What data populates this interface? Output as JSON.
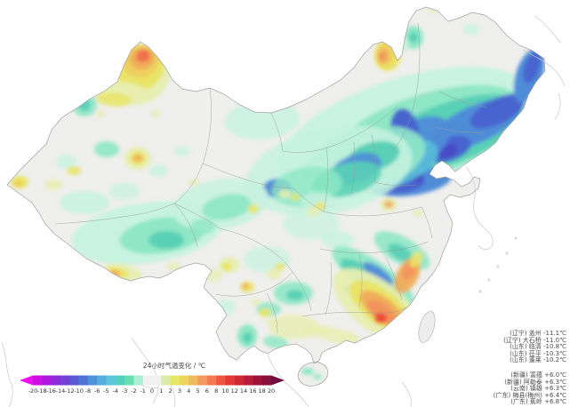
{
  "legend": {
    "title": "24小时气温变化 / ℃",
    "ticks": [
      "-20",
      "-18",
      "-16",
      "-14",
      "-12",
      "-10",
      "-8",
      "-6",
      "-5",
      "-4",
      "-3",
      "-2",
      "-1",
      "0",
      "1",
      "2",
      "3",
      "4",
      "5",
      "6",
      "8",
      "10",
      "12",
      "14",
      "16",
      "18",
      "20"
    ],
    "segment_colors": [
      "#cf0ee4",
      "#ad17df",
      "#8f2bdb",
      "#7341d6",
      "#5a58d2",
      "#4d74d4",
      "#4e93d8",
      "#55aedb",
      "#5ec6da",
      "#55cfc0",
      "#66dfb2",
      "#abeed6",
      "#f0f1f0",
      "#f0f1f0",
      "#dcebaa",
      "#e7e766",
      "#edd55e",
      "#f0ba5e",
      "#f29a5e",
      "#f27952",
      "#ef5540",
      "#e23936",
      "#cf2634",
      "#b81b37",
      "#a01339",
      "#87103a"
    ],
    "left_arrow_color": "#ee10ee",
    "right_arrow_color": "#6e0e3c"
  },
  "annotations": {
    "coldest": [
      {
        "province": "辽宁",
        "station": "盖州",
        "value": "-11.1℃"
      },
      {
        "province": "辽宁",
        "station": "大石桥",
        "value": "-11.0℃"
      },
      {
        "province": "山东",
        "station": "临清",
        "value": "-10.8℃"
      },
      {
        "province": "山东",
        "station": "茌平",
        "value": "-10.3℃"
      },
      {
        "province": "山东",
        "station": "蓬莱",
        "value": "-10.2℃"
      }
    ],
    "warmest": [
      {
        "province": "新疆",
        "station": "富蕴",
        "value": "+6.0℃"
      },
      {
        "province": "新疆",
        "station": "阿勒泰",
        "value": "+6.3℃"
      },
      {
        "province": "云南",
        "station": "镇雄",
        "value": "+6.3℃"
      },
      {
        "province": "广东",
        "station": "梅县(梅州)",
        "value": "+6.4℃"
      },
      {
        "province": "广东",
        "station": "蕉岭",
        "value": "+6.8℃"
      }
    ]
  },
  "chart_data": {
    "type": "heatmap",
    "title": "24小时气温变化 / ℃",
    "scale_range": [
      -20,
      20
    ],
    "palette": {
      "mint0": "#c6f2e0",
      "mint1": "#8fe7c6",
      "teal": "#5ad0b6",
      "tealblue": "#5cc4da",
      "blue": "#4f8cd8",
      "dblue": "#4a63cf",
      "indigo": "#474bc4",
      "yel0": "#e7eeb0",
      "yel1": "#e9e468",
      "gold": "#edcf5e",
      "org": "#f0ad5a",
      "dorg": "#f2935c",
      "rorg": "#f0714e",
      "red": "#eb4b38"
    },
    "land_color": "#efefed",
    "border_color": "#9a9a9a",
    "coast_color": "#c6c6c6",
    "anomaly_blobs": [
      [
        455,
        150,
        150,
        62,
        -18,
        "mint0",
        0.95
      ],
      [
        480,
        152,
        115,
        46,
        -18,
        "mint1",
        1
      ],
      [
        505,
        150,
        88,
        34,
        -20,
        "teal",
        1
      ],
      [
        535,
        140,
        56,
        21,
        -24,
        "blue",
        1
      ],
      [
        560,
        125,
        34,
        14,
        -26,
        "dblue",
        1
      ],
      [
        595,
        85,
        15,
        32,
        18,
        "blue",
        1
      ],
      [
        598,
        76,
        8,
        18,
        18,
        "dblue",
        1
      ],
      [
        505,
        168,
        26,
        13,
        -20,
        "dblue",
        1
      ],
      [
        503,
        170,
        12,
        7,
        -20,
        "indigo",
        1
      ],
      [
        470,
        160,
        40,
        24,
        -32,
        "blue",
        0.95
      ],
      [
        455,
        148,
        16,
        26,
        -8,
        "dblue",
        1
      ],
      [
        478,
        178,
        18,
        10,
        -30,
        "dblue",
        0.95
      ],
      [
        462,
        205,
        46,
        15,
        -8,
        "blue",
        1
      ],
      [
        452,
        208,
        26,
        9,
        -8,
        "dblue",
        1
      ],
      [
        468,
        199,
        9,
        6,
        0,
        "indigo",
        1
      ],
      [
        440,
        185,
        55,
        25,
        -18,
        "tealblue",
        0.85
      ],
      [
        410,
        180,
        70,
        35,
        -15,
        "mint1",
        0.9
      ],
      [
        370,
        192,
        95,
        48,
        -12,
        "mint0",
        0.85
      ],
      [
        420,
        176,
        30,
        16,
        -15,
        "teal",
        1
      ],
      [
        400,
        190,
        30,
        16,
        -20,
        "blue",
        0.9
      ],
      [
        390,
        202,
        40,
        18,
        -15,
        "teal",
        0.9
      ],
      [
        312,
        212,
        16,
        11,
        0,
        "blue",
        1
      ],
      [
        312,
        212,
        7,
        5,
        0,
        "dblue",
        1
      ],
      [
        295,
        135,
        42,
        22,
        -5,
        "mint0",
        0.8
      ],
      [
        465,
        42,
        11,
        13,
        0,
        "mint1",
        1
      ],
      [
        465,
        42,
        5,
        6,
        0,
        "teal",
        1
      ],
      [
        452,
        50,
        8,
        9,
        0,
        "mint0",
        0.9
      ],
      [
        530,
        33,
        9,
        6,
        0,
        "mint0",
        0.8
      ],
      [
        345,
        210,
        40,
        22,
        -10,
        "mint1",
        0.8
      ],
      [
        358,
        228,
        20,
        12,
        0,
        "mint0",
        0.8
      ],
      [
        165,
        262,
        85,
        34,
        -8,
        "mint0",
        0.95
      ],
      [
        182,
        265,
        48,
        20,
        -8,
        "mint1",
        1
      ],
      [
        187,
        270,
        20,
        10,
        0,
        "teal",
        1
      ],
      [
        248,
        230,
        55,
        28,
        -10,
        "mint0",
        0.9
      ],
      [
        255,
        233,
        28,
        14,
        -10,
        "mint1",
        0.95
      ],
      [
        228,
        255,
        14,
        9,
        0,
        "mint1",
        0.8
      ],
      [
        95,
        228,
        28,
        13,
        0,
        "mint0",
        0.85
      ],
      [
        120,
        168,
        14,
        9,
        0,
        "mint1",
        0.9
      ],
      [
        95,
        118,
        14,
        13,
        0,
        "mint1",
        0.9
      ],
      [
        95,
        118,
        7,
        7,
        0,
        "teal",
        0.95
      ],
      [
        75,
        182,
        12,
        8,
        0,
        "mint0",
        0.8
      ],
      [
        140,
        215,
        18,
        10,
        0,
        "mint0",
        0.7
      ],
      [
        178,
        192,
        10,
        7,
        0,
        "mint0",
        0.8
      ],
      [
        205,
        170,
        9,
        6,
        0,
        "mint0",
        0.7
      ],
      [
        350,
        252,
        32,
        18,
        0,
        "mint0",
        0.7
      ],
      [
        300,
        292,
        26,
        15,
        0,
        "mint0",
        0.7
      ],
      [
        380,
        270,
        18,
        10,
        0,
        "mint0",
        0.8
      ],
      [
        420,
        312,
        55,
        18,
        35,
        "mint1",
        0.95
      ],
      [
        415,
        315,
        38,
        12,
        35,
        "teal",
        1
      ],
      [
        425,
        308,
        20,
        7,
        35,
        "blue",
        0.95
      ],
      [
        398,
        330,
        14,
        6,
        35,
        "blue",
        0.9
      ],
      [
        452,
        282,
        35,
        15,
        30,
        "mint1",
        0.9
      ],
      [
        450,
        284,
        15,
        8,
        30,
        "teal",
        0.95
      ],
      [
        330,
        330,
        22,
        13,
        0,
        "mint1",
        0.9
      ],
      [
        332,
        332,
        10,
        6,
        0,
        "teal",
        0.95
      ],
      [
        302,
        348,
        14,
        8,
        0,
        "mint1",
        0.85
      ],
      [
        278,
        378,
        11,
        13,
        0,
        "mint1",
        1
      ],
      [
        278,
        380,
        5,
        6,
        0,
        "teal",
        1
      ],
      [
        255,
        345,
        10,
        8,
        0,
        "mint0",
        0.8
      ],
      [
        310,
        385,
        14,
        7,
        10,
        "mint1",
        0.85
      ],
      [
        346,
        418,
        7,
        4,
        0,
        "mint1",
        1
      ],
      [
        357,
        424,
        5,
        3,
        0,
        "mint1",
        0.9
      ],
      [
        152,
        84,
        40,
        34,
        -15,
        "yel0",
        0.95
      ],
      [
        155,
        76,
        30,
        26,
        -15,
        "yel1",
        1
      ],
      [
        158,
        69,
        21,
        18,
        -15,
        "gold",
        1
      ],
      [
        160,
        66,
        14,
        12,
        -15,
        "org",
        1
      ],
      [
        161,
        63,
        8,
        7,
        -15,
        "rorg",
        1
      ],
      [
        135,
        103,
        34,
        12,
        8,
        "yel0",
        0.9
      ],
      [
        128,
        112,
        20,
        8,
        4,
        "yel1",
        0.85
      ],
      [
        83,
        192,
        8,
        5,
        0,
        "yel1",
        0.9
      ],
      [
        60,
        208,
        10,
        6,
        0,
        "yel0",
        0.85
      ],
      [
        22,
        205,
        10,
        7,
        0,
        "yel1",
        1
      ],
      [
        20,
        207,
        5,
        4,
        0,
        "gold",
        1
      ],
      [
        155,
        178,
        15,
        13,
        0,
        "yel0",
        0.95
      ],
      [
        155,
        178,
        9,
        8,
        0,
        "yel1",
        1
      ],
      [
        155,
        178,
        5,
        4,
        0,
        "org",
        1
      ],
      [
        113,
        128,
        5,
        4,
        0,
        "yel0",
        0.8
      ],
      [
        175,
        128,
        5,
        4,
        0,
        "yel0",
        0.8
      ],
      [
        218,
        205,
        6,
        4,
        0,
        "yel0",
        0.8
      ],
      [
        436,
        62,
        15,
        18,
        8,
        "yel1",
        1
      ],
      [
        433,
        62,
        10,
        13,
        8,
        "gold",
        1
      ],
      [
        431,
        63,
        6,
        8,
        8,
        "org",
        1
      ],
      [
        430,
        64,
        3.5,
        5,
        8,
        "dorg",
        1
      ],
      [
        285,
        235,
        6,
        5,
        0,
        "yel1",
        0.9
      ],
      [
        320,
        218,
        7,
        5,
        0,
        "yel0",
        0.85
      ],
      [
        332,
        222,
        5,
        4,
        0,
        "yel1",
        0.85
      ],
      [
        360,
        232,
        6,
        5,
        0,
        "yel1",
        0.9
      ],
      [
        352,
        238,
        8,
        6,
        0,
        "yel0",
        0.8
      ],
      [
        437,
        230,
        10,
        8,
        0,
        "yel0",
        0.9
      ],
      [
        437,
        230,
        5,
        4,
        0,
        "org",
        1
      ],
      [
        470,
        240,
        6,
        4,
        0,
        "yel0",
        0.8
      ],
      [
        258,
        298,
        12,
        9,
        0,
        "yel0",
        0.9
      ],
      [
        255,
        300,
        6,
        5,
        0,
        "yel1",
        1
      ],
      [
        278,
        323,
        8,
        6,
        0,
        "yel1",
        0.95
      ],
      [
        276,
        322,
        4,
        3,
        0,
        "org",
        1
      ],
      [
        240,
        310,
        10,
        7,
        0,
        "yel0",
        0.8
      ],
      [
        308,
        308,
        9,
        6,
        0,
        "yel0",
        0.85
      ],
      [
        315,
        300,
        6,
        4,
        0,
        "yel1",
        0.85
      ],
      [
        138,
        306,
        22,
        9,
        12,
        "yel0",
        0.95
      ],
      [
        132,
        307,
        13,
        6,
        12,
        "yel1",
        1
      ],
      [
        129,
        308,
        6,
        4,
        12,
        "org",
        1
      ],
      [
        195,
        300,
        8,
        5,
        0,
        "yel0",
        0.8
      ],
      [
        425,
        345,
        60,
        28,
        38,
        "yel0",
        0.95
      ],
      [
        428,
        345,
        42,
        19,
        38,
        "yel1",
        1
      ],
      [
        430,
        348,
        30,
        13,
        38,
        "org",
        1
      ],
      [
        430,
        352,
        20,
        9,
        38,
        "dorg",
        1
      ],
      [
        428,
        358,
        7,
        6,
        0,
        "red",
        1
      ],
      [
        458,
        310,
        12,
        22,
        28,
        "org",
        0.95
      ],
      [
        461,
        303,
        7,
        13,
        28,
        "dorg",
        0.9
      ],
      [
        468,
        292,
        6,
        10,
        30,
        "yel1",
        0.9
      ],
      [
        380,
        378,
        25,
        8,
        10,
        "yel0",
        0.85
      ],
      [
        355,
        372,
        18,
        7,
        0,
        "yel0",
        0.8
      ],
      [
        330,
        368,
        28,
        14,
        0,
        "yel0",
        0.8
      ],
      [
        298,
        352,
        7,
        5,
        0,
        "yel1",
        0.9
      ],
      [
        288,
        340,
        6,
        4,
        0,
        "yel0",
        0.8
      ],
      [
        305,
        362,
        6,
        4,
        0,
        "yel0",
        0.7
      ],
      [
        487,
        10,
        6,
        4,
        0,
        "yel0",
        0.85
      ]
    ]
  }
}
